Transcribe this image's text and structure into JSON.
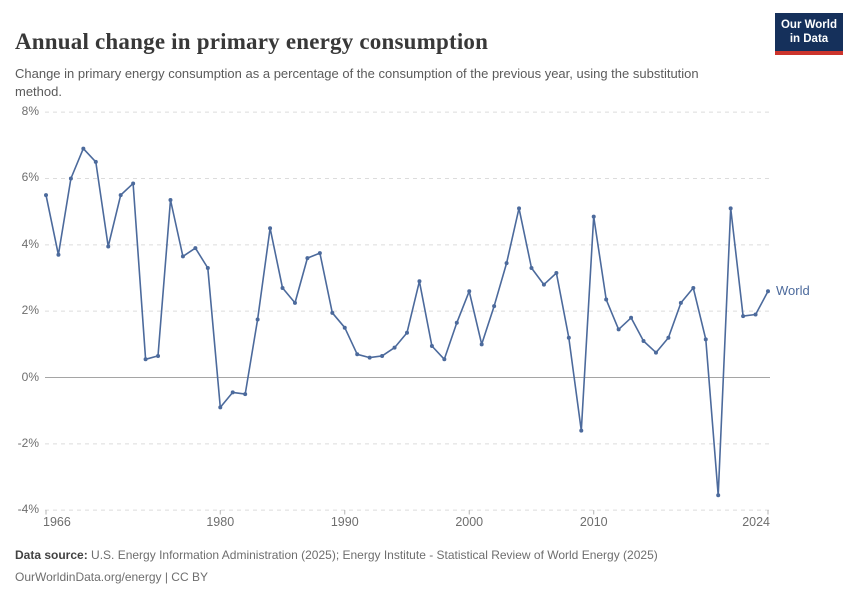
{
  "header": {
    "logo_line1": "Our World",
    "logo_line2": "in Data"
  },
  "chart_data": {
    "type": "line",
    "title": "Annual change in primary energy consumption",
    "subtitle": "Change in primary energy consumption as a percentage of the consumption of the previous year, using the substitution method.",
    "xlabel": "",
    "ylabel": "",
    "ylim": [
      -4,
      8
    ],
    "xlim": [
      1966,
      2024
    ],
    "grid": "dashed horizontal gridlines, solid zero line",
    "legend_position": "end-of-line label",
    "yticks": [
      {
        "value": 8,
        "label": "8%"
      },
      {
        "value": 6,
        "label": "6%"
      },
      {
        "value": 4,
        "label": "4%"
      },
      {
        "value": 2,
        "label": "2%"
      },
      {
        "value": 0,
        "label": "0%"
      },
      {
        "value": -2,
        "label": "-2%"
      },
      {
        "value": -4,
        "label": "-4%"
      }
    ],
    "xticks": [
      {
        "value": 1966,
        "label": "1966"
      },
      {
        "value": 1980,
        "label": "1980"
      },
      {
        "value": 1990,
        "label": "1990"
      },
      {
        "value": 2000,
        "label": "2000"
      },
      {
        "value": 2010,
        "label": "2010"
      },
      {
        "value": 2024,
        "label": "2024"
      }
    ],
    "series": [
      {
        "name": "World",
        "years": [
          1966,
          1967,
          1968,
          1969,
          1970,
          1971,
          1972,
          1973,
          1974,
          1975,
          1976,
          1977,
          1978,
          1979,
          1980,
          1981,
          1982,
          1983,
          1984,
          1985,
          1986,
          1987,
          1988,
          1989,
          1990,
          1991,
          1992,
          1993,
          1994,
          1995,
          1996,
          1997,
          1998,
          1999,
          2000,
          2001,
          2002,
          2003,
          2004,
          2005,
          2006,
          2007,
          2008,
          2009,
          2010,
          2011,
          2012,
          2013,
          2014,
          2015,
          2016,
          2017,
          2018,
          2019,
          2020,
          2021,
          2022,
          2023,
          2024
        ],
        "values": [
          5.5,
          3.7,
          6.0,
          6.9,
          6.5,
          3.95,
          5.5,
          5.85,
          0.55,
          0.65,
          5.35,
          3.65,
          3.9,
          3.3,
          -0.9,
          -0.45,
          -0.5,
          1.75,
          4.5,
          2.7,
          2.25,
          3.6,
          3.75,
          1.95,
          1.5,
          0.7,
          0.6,
          0.65,
          0.9,
          1.35,
          2.9,
          0.95,
          0.55,
          1.65,
          2.6,
          1.0,
          2.15,
          3.45,
          5.1,
          3.3,
          2.8,
          3.15,
          1.2,
          -1.6,
          4.85,
          2.35,
          1.45,
          1.8,
          1.1,
          0.75,
          1.2,
          2.25,
          2.7,
          1.15,
          -3.55,
          5.1,
          1.85,
          1.9,
          2.6
        ]
      }
    ]
  },
  "annotations": {
    "series_label": "World"
  },
  "footer": {
    "source_label": "Data source:",
    "source_text": " U.S. Energy Information Administration (2025); Energy Institute - Statistical Review of World Energy (2025)",
    "license_line": "OurWorldinData.org/energy | CC BY"
  },
  "colors": {
    "line": "#4C6A9C",
    "logo_bg": "#15305B",
    "logo_red": "#CC342C",
    "gridline": "#dcdcdc",
    "zero_line": "#a5a5a5",
    "tick": "#b5b5b5"
  }
}
